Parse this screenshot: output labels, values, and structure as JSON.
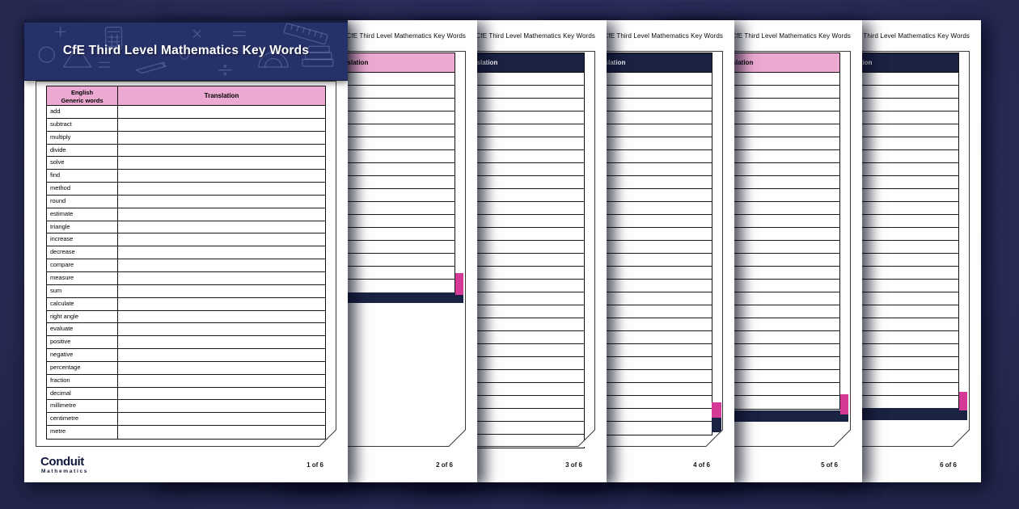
{
  "banner": {
    "title": "CfE Third Level Mathematics Key Words"
  },
  "running_title": "CfE Third Level Mathematics Key Words",
  "table_header": {
    "english": "English",
    "english_sub": "Generic words",
    "translation": "Translation"
  },
  "logo": {
    "name": "Conduit",
    "sub": "Mathematics"
  },
  "colors": {
    "background": "#2a2d58",
    "banner_navy": "#273169",
    "header_pink": "#ecaad2",
    "header_navy": "#1b2345",
    "flag_magenta": "#d43a96",
    "page_white": "#ffffff"
  },
  "pages": [
    {
      "n": 1,
      "page_label": "1 of 6",
      "header_style": "pink",
      "words": [
        "add",
        "subtract",
        "multiply",
        "divide",
        "solve",
        "find",
        "method",
        "round",
        "estimate",
        "triangle",
        "increase",
        "decrease",
        "compare",
        "measure",
        "sum",
        "calculate",
        "right angle",
        "evaluate",
        "positive",
        "negative",
        "percentage",
        "fraction",
        "decimal",
        "millimetre",
        "centimetre",
        "metre"
      ]
    },
    {
      "n": 2,
      "page_label": "2 of 6",
      "header_style": "pink",
      "blank_rows": 17,
      "footer_bar": true,
      "ribbon": true
    },
    {
      "n": 3,
      "page_label": "3 of 6",
      "header_style": "navy",
      "blank_rows": 29,
      "footer_bar": false,
      "ribbon": false
    },
    {
      "n": 4,
      "page_label": "4 of 6",
      "header_style": "navy",
      "blank_rows": 28,
      "footer_bar": false,
      "ribbon": true
    },
    {
      "n": 5,
      "page_label": "5 of 6",
      "header_style": "pink",
      "blank_rows": 26,
      "footer_bar": true,
      "ribbon": true
    },
    {
      "n": 6,
      "page_label": "6 of 6",
      "header_style": "navy",
      "blank_rows": 26,
      "footer_bar": true,
      "ribbon": true
    }
  ]
}
